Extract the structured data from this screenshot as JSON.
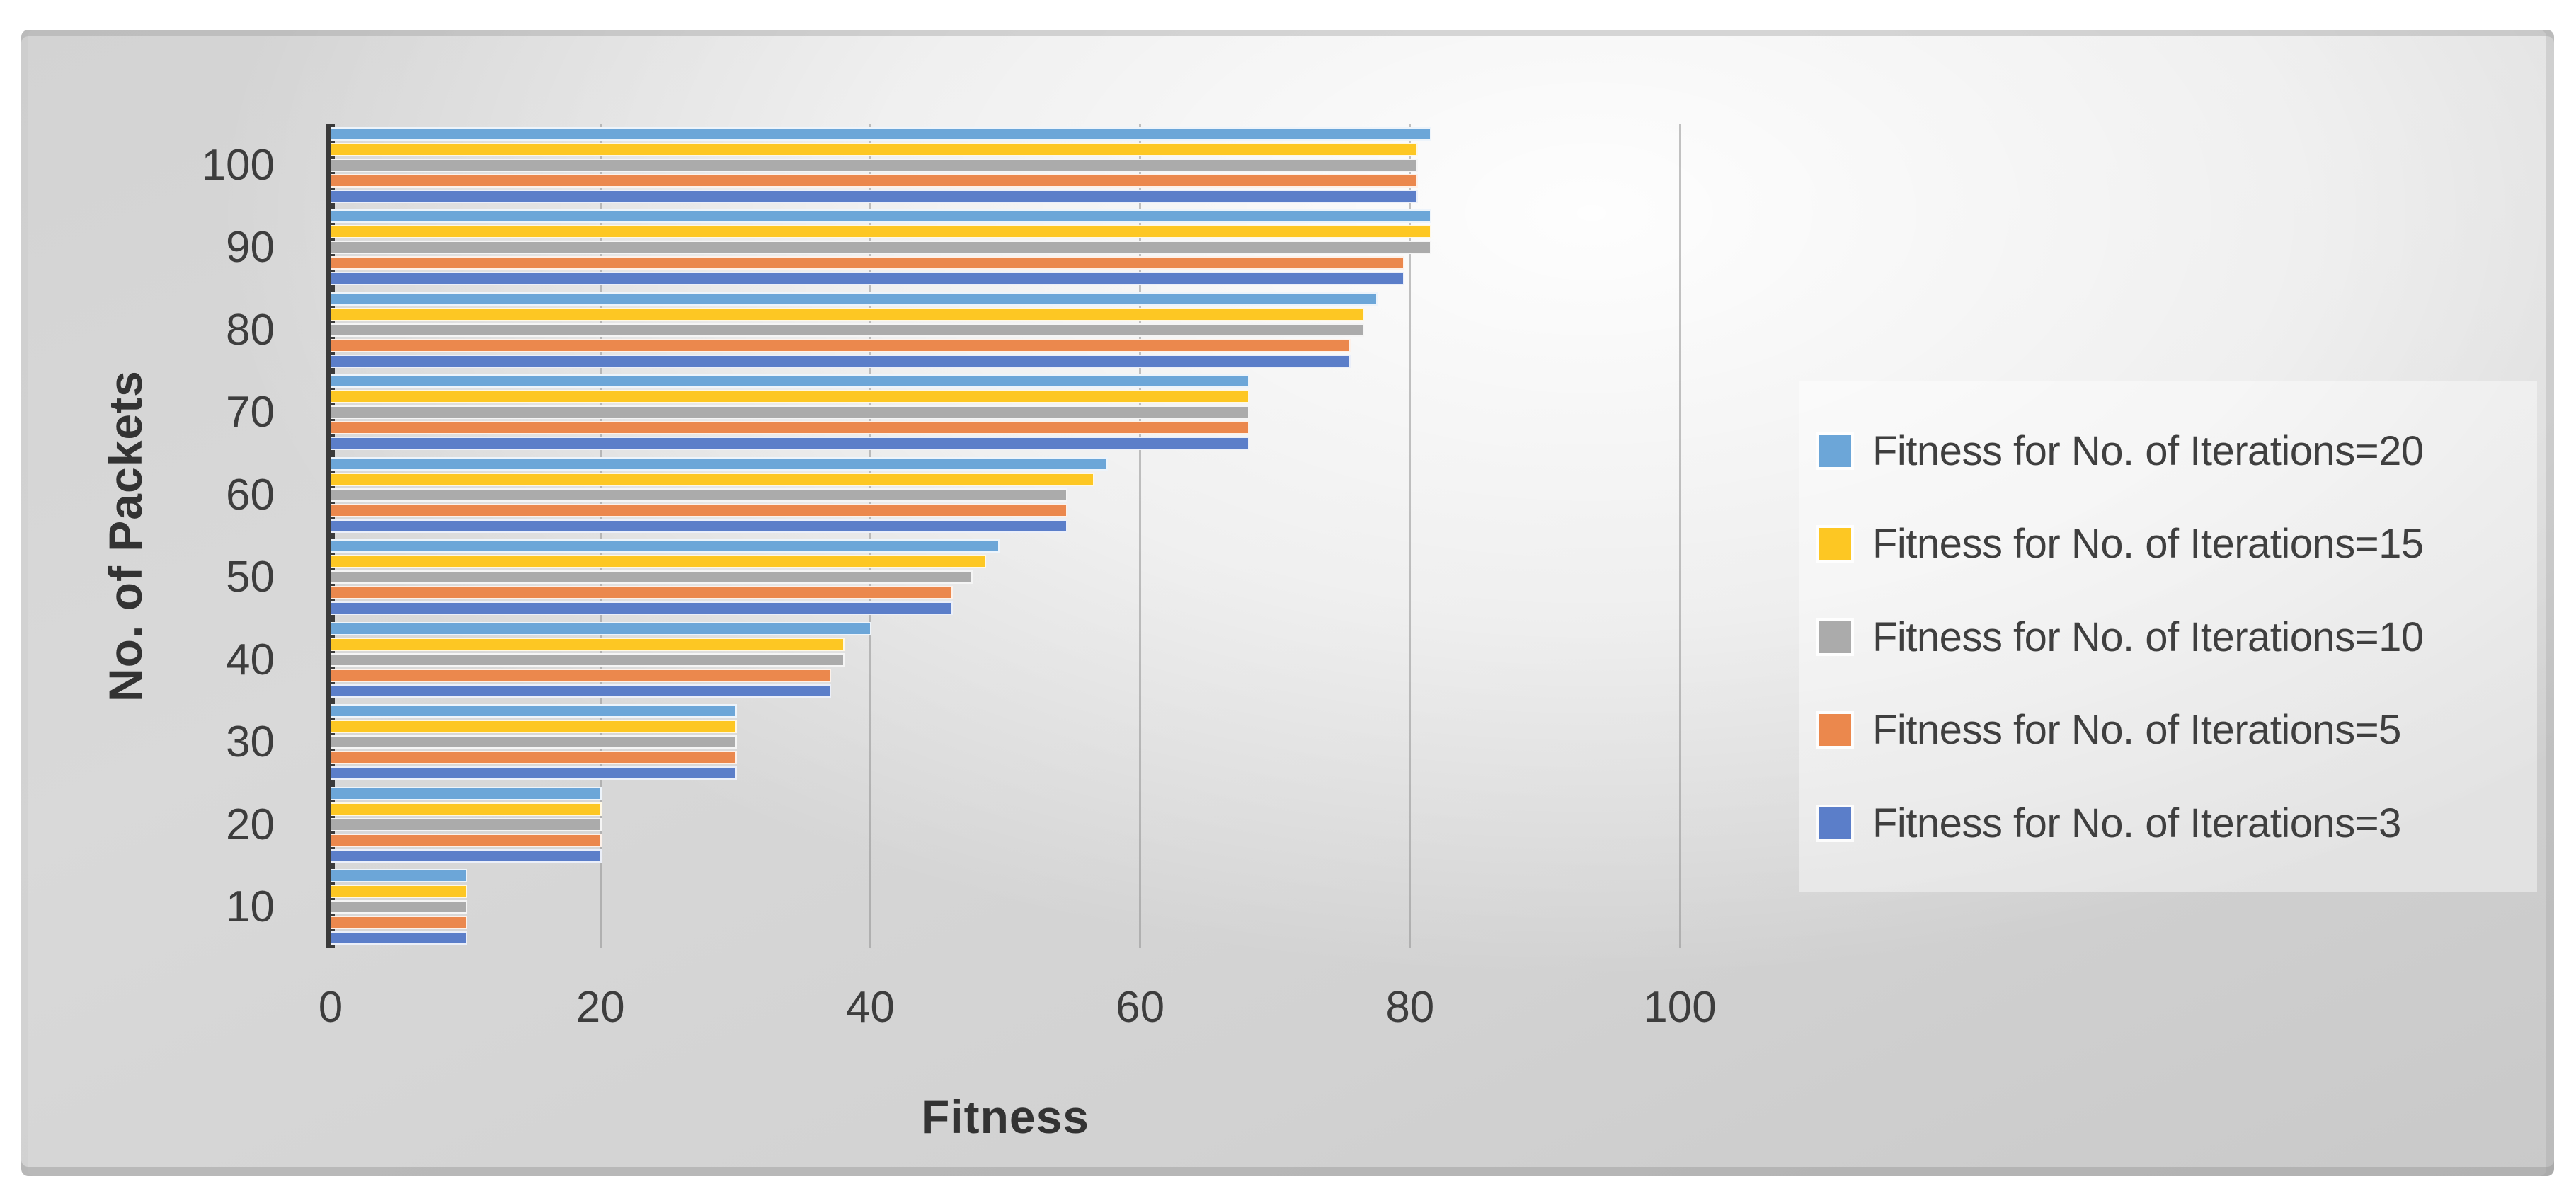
{
  "text_color": "#3F3F3F",
  "axis_line_color": "#3A3A3A",
  "panel_background": "#D6D6D6",
  "legend_background": "#EDEDED",
  "chart_data": {
    "type": "bar",
    "orientation": "horizontal",
    "title": "",
    "xlabel": "Fitness",
    "ylabel": "No. of Packets",
    "xlim": [
      0,
      100
    ],
    "xticks": [
      0,
      20,
      40,
      60,
      80,
      100
    ],
    "grid": "vertical major gridlines",
    "legend_position": "right",
    "categories": [
      100,
      90,
      80,
      70,
      60,
      50,
      40,
      30,
      20,
      10
    ],
    "series": [
      {
        "name": "Fitness for No. of Iterations=20",
        "color": "#6CA6D8",
        "values": [
          81.5,
          81.5,
          77.5,
          68,
          57.5,
          49.5,
          40,
          30,
          20,
          10
        ]
      },
      {
        "name": "Fitness for No. of Iterations=15",
        "color": "#FDC723",
        "values": [
          80.5,
          81.5,
          76.5,
          68,
          56.5,
          48.5,
          38,
          30,
          20,
          10
        ]
      },
      {
        "name": "Fitness for No. of Iterations=10",
        "color": "#ABABAB",
        "values": [
          80.5,
          81.5,
          76.5,
          68,
          54.5,
          47.5,
          38,
          30,
          20,
          10
        ]
      },
      {
        "name": "Fitness for No. of Iterations=5",
        "color": "#EB884D",
        "values": [
          80.5,
          79.5,
          75.5,
          68,
          54.5,
          46,
          37,
          30,
          20,
          10
        ]
      },
      {
        "name": "Fitness for No. of Iterations=3",
        "color": "#5B7EC9",
        "values": [
          80.5,
          79.5,
          75.5,
          68,
          54.5,
          46,
          37,
          30,
          20,
          10
        ]
      }
    ]
  }
}
